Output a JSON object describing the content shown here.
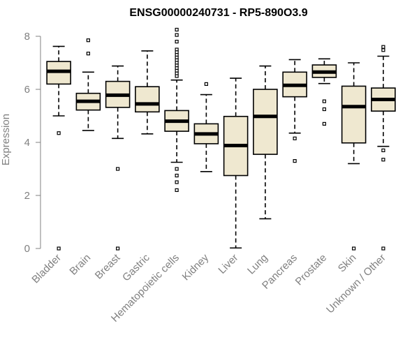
{
  "chart_data": {
    "type": "boxplot",
    "title": "ENSG00000240731 - RP5-890O3.9",
    "xlabel": "",
    "ylabel": "Expression",
    "ylim": [
      0,
      8.3
    ],
    "yticks": [
      0,
      2,
      4,
      6,
      8
    ],
    "box_fill": "#efe8d0",
    "line_color": "#000000",
    "axis_color": "#808080",
    "categories": [
      "Bladder",
      "Brain",
      "Breast",
      "Gastric",
      "Hematopoietic cells",
      "Kidney",
      "Liver",
      "Lung",
      "Pancreas",
      "Prostate",
      "Skin",
      "Unknown / Other"
    ],
    "boxes": [
      {
        "name": "Bladder",
        "min": 5.0,
        "q1": 6.2,
        "median": 6.68,
        "q3": 7.05,
        "max": 7.62,
        "outliers": [
          4.35,
          0.0
        ]
      },
      {
        "name": "Brain",
        "min": 4.45,
        "q1": 5.22,
        "median": 5.55,
        "q3": 5.85,
        "max": 6.65,
        "outliers": [
          7.85,
          7.35
        ]
      },
      {
        "name": "Breast",
        "min": 4.15,
        "q1": 5.32,
        "median": 5.78,
        "q3": 6.3,
        "max": 6.88,
        "outliers": [
          3.0,
          0.0
        ]
      },
      {
        "name": "Gastric",
        "min": 4.32,
        "q1": 5.15,
        "median": 5.45,
        "q3": 6.1,
        "max": 7.45,
        "outliers": []
      },
      {
        "name": "Hematopoietic cells",
        "min": 3.25,
        "q1": 4.42,
        "median": 4.8,
        "q3": 5.2,
        "max": 6.35,
        "outliers": [
          8.25,
          8.05,
          7.8,
          7.5,
          7.4,
          7.3,
          7.2,
          7.1,
          7.0,
          6.9,
          6.8,
          6.7,
          6.6,
          6.5,
          3.0,
          2.75,
          2.5,
          2.2
        ]
      },
      {
        "name": "Kidney",
        "min": 2.9,
        "q1": 3.95,
        "median": 4.32,
        "q3": 4.7,
        "max": 5.8,
        "outliers": [
          6.2
        ]
      },
      {
        "name": "Liver",
        "min": 0.02,
        "q1": 2.75,
        "median": 3.88,
        "q3": 4.98,
        "max": 6.42,
        "outliers": []
      },
      {
        "name": "Lung",
        "min": 1.12,
        "q1": 3.55,
        "median": 4.98,
        "q3": 6.0,
        "max": 6.88,
        "outliers": []
      },
      {
        "name": "Pancreas",
        "min": 4.35,
        "q1": 5.72,
        "median": 6.15,
        "q3": 6.65,
        "max": 7.12,
        "outliers": [
          4.15,
          3.3
        ]
      },
      {
        "name": "Prostate",
        "min": 6.22,
        "q1": 6.45,
        "median": 6.65,
        "q3": 6.92,
        "max": 7.15,
        "outliers": [
          5.55,
          5.25,
          4.7
        ]
      },
      {
        "name": "Skin",
        "min": 3.2,
        "q1": 3.98,
        "median": 5.35,
        "q3": 6.12,
        "max": 7.0,
        "outliers": [
          0.0
        ]
      },
      {
        "name": "Unknown / Other",
        "min": 3.85,
        "q1": 5.18,
        "median": 5.62,
        "q3": 6.05,
        "max": 7.25,
        "outliers": [
          7.6,
          7.48,
          3.7,
          3.35,
          0.0
        ]
      }
    ]
  }
}
